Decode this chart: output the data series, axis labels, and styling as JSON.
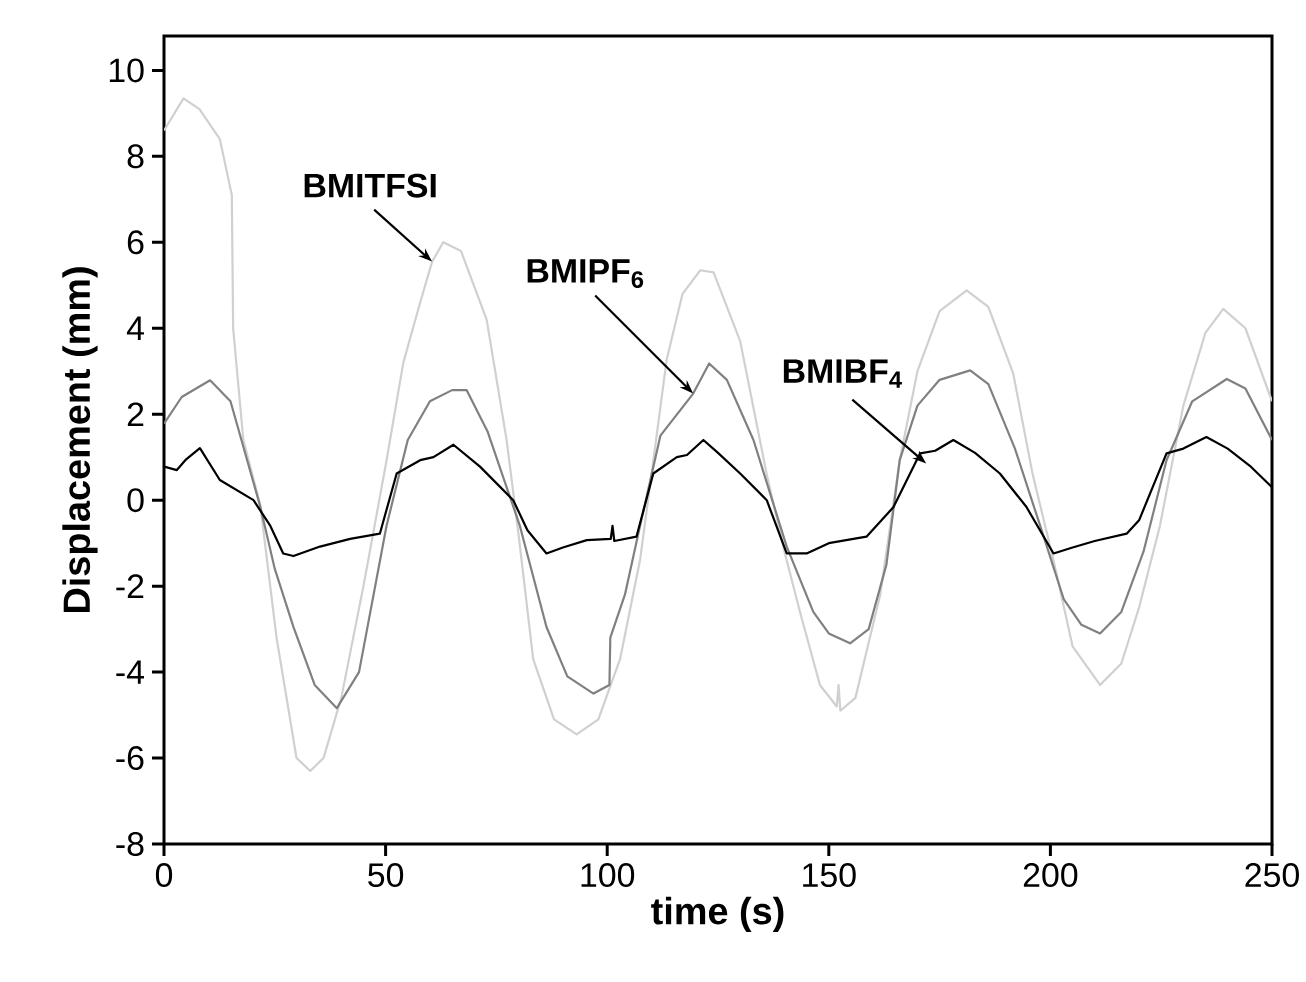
{
  "chart_data": {
    "type": "line",
    "xlabel": "time (s)",
    "ylabel": "Displacement (mm)",
    "xlim": [
      0,
      250
    ],
    "ylim": [
      -8,
      10.8
    ],
    "xticks": [
      0,
      50,
      100,
      150,
      200,
      250
    ],
    "yticks": [
      -8,
      -6,
      -4,
      -2,
      0,
      2,
      4,
      6,
      8,
      10
    ],
    "marker": "none",
    "grid": false,
    "series": [
      {
        "color": "#d0d0d0",
        "x": [
          0,
          4.4,
          8,
          12.6,
          15.3,
          15.6,
          17.9,
          21.7,
          25.4,
          29.9,
          33,
          36,
          40,
          45,
          50,
          54,
          57.8,
          60.5,
          63,
          67,
          72.8,
          77.3,
          80,
          83.3,
          88,
          93.1,
          98,
          102.9,
          107.4,
          110,
          113.4,
          117,
          121,
          124,
          130,
          136,
          140,
          143.5,
          148,
          151.8,
          152.2,
          152.6,
          156,
          161.6,
          166,
          170,
          175,
          181.1,
          186,
          191.6,
          196,
          200.7,
          205,
          211.2,
          216,
          220,
          224.7,
          230,
          235,
          239,
          244,
          250
        ],
        "values": [
          8.6,
          9.35,
          9.1,
          8.4,
          7.1,
          4.0,
          1.4,
          -0.1,
          -3.2,
          -6.0,
          -6.3,
          -6.0,
          -4.6,
          -2.0,
          0.8,
          3.2,
          4.6,
          5.55,
          6.0,
          5.8,
          4.2,
          1.4,
          -0.8,
          -3.7,
          -5.1,
          -5.45,
          -5.1,
          -3.7,
          -1.4,
          0.6,
          3.26,
          4.8,
          5.35,
          5.3,
          3.7,
          0.6,
          -1.2,
          -2.6,
          -4.3,
          -4.8,
          -4.3,
          -4.9,
          -4.6,
          -2.2,
          0.93,
          3.0,
          4.4,
          4.88,
          4.5,
          2.95,
          0.6,
          -1.4,
          -3.4,
          -4.3,
          -3.8,
          -2.5,
          -0.6,
          2.2,
          3.9,
          4.45,
          4.0,
          2.3
        ]
      },
      {
        "color": "#808080",
        "x": [
          0,
          4,
          10.4,
          15,
          21.7,
          25,
          29.2,
          34,
          39,
          44,
          50.2,
          55,
          60,
          65,
          68.3,
          73,
          80.3,
          86.3,
          91,
          96.9,
          100.5,
          100.7,
          104,
          107.4,
          112,
          119.4,
          123,
          127,
          133,
          140.5,
          146.5,
          150,
          154.8,
          159,
          163,
          166,
          170,
          175,
          181.9,
          186,
          192,
          197.7,
          203,
          207,
          211.2,
          216,
          221,
          226.2,
          232,
          239.8,
          244,
          250
        ],
        "values": [
          1.78,
          2.4,
          2.79,
          2.3,
          -0.14,
          -1.6,
          -2.95,
          -4.3,
          -4.84,
          -4.0,
          -0.6,
          1.4,
          2.3,
          2.56,
          2.56,
          1.6,
          -0.6,
          -2.95,
          -4.1,
          -4.5,
          -4.3,
          -3.2,
          -2.2,
          -0.6,
          1.5,
          2.48,
          3.18,
          2.8,
          1.4,
          -1.08,
          -2.6,
          -3.1,
          -3.33,
          -3.0,
          -1.5,
          0.93,
          2.2,
          2.8,
          3.02,
          2.7,
          1.2,
          -0.6,
          -2.3,
          -2.9,
          -3.1,
          -2.6,
          -1.2,
          0.93,
          2.3,
          2.82,
          2.6,
          1.4
        ]
      },
      {
        "color": "#000000",
        "x": [
          0,
          2.9,
          5,
          8.1,
          12.6,
          20.2,
          24,
          26.9,
          29.2,
          35.2,
          42,
          48.7,
          52.5,
          57.8,
          60.8,
          65.3,
          71.3,
          78.8,
          82,
          86.3,
          90,
          95.4,
          100.8,
          101.2,
          101.6,
          106.6,
          110.4,
          115.7,
          118,
          121.7,
          125,
          130,
          136,
          140.5,
          145,
          150,
          158.5,
          164.6,
          170.6,
          174,
          178.1,
          183,
          188.6,
          194.6,
          200.7,
          205,
          210,
          217.2,
          220,
          226.2,
          230,
          235.2,
          240,
          245,
          250
        ],
        "values": [
          0.78,
          0.7,
          0.95,
          1.21,
          0.47,
          0,
          -0.6,
          -1.24,
          -1.3,
          -1.08,
          -0.9,
          -0.78,
          0.62,
          0.93,
          1.0,
          1.29,
          0.78,
          0,
          -0.7,
          -1.24,
          -1.1,
          -0.93,
          -0.9,
          -0.6,
          -0.95,
          -0.85,
          0.62,
          1.0,
          1.05,
          1.4,
          1.1,
          0.62,
          0,
          -1.24,
          -1.24,
          -1.0,
          -0.85,
          -0.16,
          1.09,
          1.15,
          1.4,
          1.1,
          0.62,
          -0.16,
          -1.24,
          -1.1,
          -0.95,
          -0.78,
          -0.47,
          1.09,
          1.2,
          1.47,
          1.2,
          0.8,
          0.3
        ]
      }
    ],
    "annotations": [
      {
        "text": "BMITFSI",
        "x": 60.5,
        "y": 5.55
      },
      {
        "text": "BMIPF$_{6}$",
        "x": 119.4,
        "y": 2.48
      },
      {
        "text": "BMIBF$_{4}$",
        "x": 172,
        "y": 0.85
      }
    ]
  }
}
